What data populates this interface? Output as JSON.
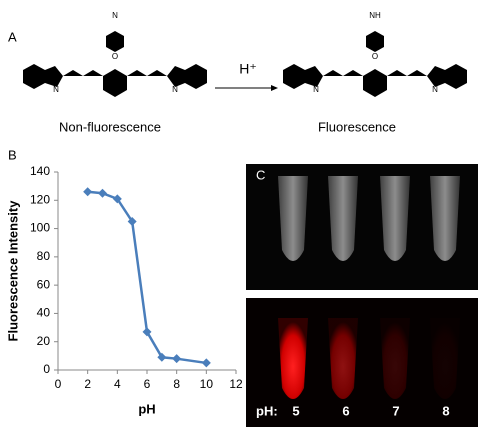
{
  "panel_a": {
    "label": "A",
    "reagent": "H⁺",
    "left_caption": "Non-fluorescence",
    "right_caption": "Fluorescence",
    "left_atoms": [
      "N",
      "O",
      "N",
      "N"
    ],
    "right_atoms": [
      "NH",
      "O",
      "N",
      "N"
    ]
  },
  "chart_data": {
    "type": "line",
    "label": "B",
    "x_label": "pH",
    "y_label": "Fluorescence Intensity",
    "x": [
      2,
      3,
      4,
      5,
      6,
      7,
      8,
      10
    ],
    "series": [
      {
        "name": "Fluorescence Intensity",
        "color": "#4a7ebb",
        "values": [
          126,
          125,
          121,
          105,
          27,
          9,
          8,
          5
        ]
      }
    ],
    "xlim": [
      0,
      12
    ],
    "xticks": [
      0,
      2,
      4,
      6,
      8,
      10,
      12
    ],
    "ylim": [
      0,
      140
    ],
    "yticks": [
      0,
      20,
      40,
      60,
      80,
      100,
      120,
      140
    ],
    "grid": false
  },
  "panel_c": {
    "label": "C",
    "ph_prefix": "pH:",
    "tube_labels": [
      "5",
      "6",
      "7",
      "8"
    ]
  }
}
